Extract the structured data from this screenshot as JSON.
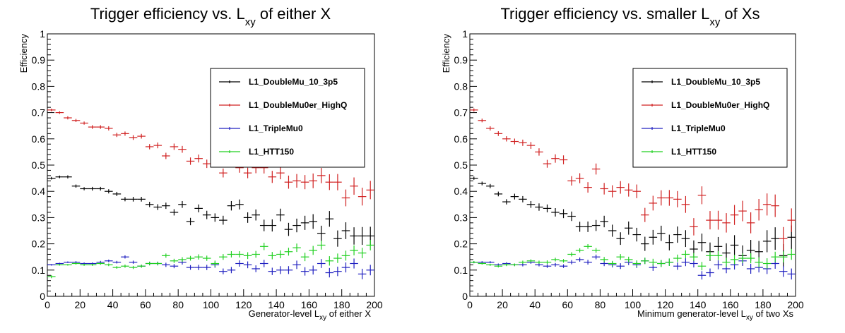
{
  "chart_data": [
    {
      "type": "scatter",
      "title_main": "Trigger efficiency vs. L",
      "title_sub": "xy",
      "title_tail": " of either X",
      "xlabel_main": "Generator-level L",
      "xlabel_sub": "xy",
      "xlabel_tail": " of either X",
      "ylabel": "Efficiency",
      "xlim": [
        0,
        200
      ],
      "ylim": [
        0,
        1
      ],
      "x_ticks": [
        "0",
        "20",
        "40",
        "60",
        "80",
        "100",
        "120",
        "140",
        "160",
        "180",
        "200"
      ],
      "y_ticks": [
        "0",
        "0.1",
        "0.2",
        "0.3",
        "0.4",
        "0.5",
        "0.6",
        "0.7",
        "0.8",
        "0.9",
        "1"
      ],
      "x": [
        2.5,
        7.5,
        12.5,
        17.5,
        22.5,
        27.5,
        32.5,
        37.5,
        42.5,
        47.5,
        52.5,
        57.5,
        62.5,
        67.5,
        72.5,
        77.5,
        82.5,
        87.5,
        92.5,
        97.5,
        102.5,
        107.5,
        112.5,
        117.5,
        122.5,
        127.5,
        132.5,
        137.5,
        142.5,
        147.5,
        152.5,
        157.5,
        162.5,
        167.5,
        172.5,
        177.5,
        182.5,
        187.5,
        192.5,
        197.5
      ],
      "series": [
        {
          "name": "L1_DoubleMu_10_3p5",
          "color": "#000000",
          "values": [
            0.45,
            0.455,
            0.455,
            0.42,
            0.41,
            0.41,
            0.41,
            0.4,
            0.39,
            0.37,
            0.37,
            0.37,
            0.35,
            0.34,
            0.345,
            0.32,
            0.35,
            0.285,
            0.335,
            0.31,
            0.3,
            0.29,
            0.345,
            0.35,
            0.3,
            0.31,
            0.27,
            0.27,
            0.31,
            0.255,
            0.27,
            0.28,
            0.285,
            0.24,
            0.295,
            0.22,
            0.25,
            0.23,
            0.23,
            0.23
          ],
          "err": [
            0.005,
            0.005,
            0.006,
            0.006,
            0.006,
            0.007,
            0.007,
            0.008,
            0.008,
            0.008,
            0.009,
            0.009,
            0.01,
            0.011,
            0.012,
            0.012,
            0.013,
            0.014,
            0.015,
            0.016,
            0.016,
            0.017,
            0.018,
            0.019,
            0.02,
            0.021,
            0.022,
            0.023,
            0.024,
            0.025,
            0.026,
            0.027,
            0.028,
            0.029,
            0.03,
            0.031,
            0.032,
            0.033,
            0.034,
            0.035
          ]
        },
        {
          "name": "L1_DoubleMu0er_HighQ",
          "color": "#d02020",
          "values": [
            0.71,
            0.7,
            0.68,
            0.67,
            0.66,
            0.645,
            0.645,
            0.64,
            0.615,
            0.62,
            0.605,
            0.61,
            0.57,
            0.575,
            0.535,
            0.57,
            0.56,
            0.515,
            0.525,
            0.505,
            0.52,
            0.47,
            0.53,
            0.49,
            0.47,
            0.49,
            0.49,
            0.455,
            0.47,
            0.435,
            0.44,
            0.435,
            0.44,
            0.46,
            0.435,
            0.435,
            0.375,
            0.42,
            0.38,
            0.405
          ],
          "err": [
            0.005,
            0.005,
            0.006,
            0.006,
            0.006,
            0.007,
            0.007,
            0.008,
            0.008,
            0.008,
            0.009,
            0.009,
            0.01,
            0.011,
            0.012,
            0.012,
            0.013,
            0.014,
            0.015,
            0.016,
            0.016,
            0.017,
            0.018,
            0.019,
            0.02,
            0.021,
            0.022,
            0.023,
            0.024,
            0.025,
            0.026,
            0.027,
            0.028,
            0.029,
            0.03,
            0.031,
            0.032,
            0.033,
            0.034,
            0.035
          ]
        },
        {
          "name": "L1_TripleMu0",
          "color": "#2020c0",
          "values": [
            0.12,
            0.125,
            0.13,
            0.13,
            0.125,
            0.125,
            0.13,
            0.135,
            0.13,
            0.15,
            0.13,
            0.115,
            0.125,
            0.125,
            0.12,
            0.115,
            0.13,
            0.11,
            0.11,
            0.11,
            0.12,
            0.095,
            0.1,
            0.125,
            0.12,
            0.105,
            0.125,
            0.095,
            0.1,
            0.1,
            0.12,
            0.095,
            0.1,
            0.125,
            0.09,
            0.095,
            0.11,
            0.125,
            0.085,
            0.1
          ],
          "err": [
            0.003,
            0.003,
            0.003,
            0.004,
            0.004,
            0.004,
            0.005,
            0.005,
            0.005,
            0.006,
            0.006,
            0.006,
            0.007,
            0.007,
            0.008,
            0.008,
            0.009,
            0.009,
            0.01,
            0.01,
            0.011,
            0.011,
            0.012,
            0.012,
            0.013,
            0.013,
            0.014,
            0.014,
            0.015,
            0.015,
            0.016,
            0.016,
            0.017,
            0.017,
            0.018,
            0.018,
            0.019,
            0.019,
            0.02,
            0.02
          ]
        },
        {
          "name": "L1_HTT150",
          "color": "#20d020",
          "values": [
            0.075,
            0.12,
            0.12,
            0.125,
            0.12,
            0.12,
            0.125,
            0.12,
            0.11,
            0.115,
            0.11,
            0.115,
            0.125,
            0.125,
            0.155,
            0.135,
            0.14,
            0.145,
            0.15,
            0.145,
            0.125,
            0.15,
            0.16,
            0.16,
            0.155,
            0.16,
            0.19,
            0.155,
            0.16,
            0.17,
            0.185,
            0.15,
            0.175,
            0.195,
            0.135,
            0.145,
            0.155,
            0.175,
            0.165,
            0.195
          ],
          "err": [
            0.006,
            0.003,
            0.003,
            0.004,
            0.004,
            0.004,
            0.005,
            0.005,
            0.005,
            0.006,
            0.006,
            0.006,
            0.007,
            0.007,
            0.008,
            0.008,
            0.009,
            0.009,
            0.01,
            0.01,
            0.011,
            0.011,
            0.012,
            0.012,
            0.013,
            0.013,
            0.014,
            0.014,
            0.015,
            0.015,
            0.016,
            0.016,
            0.017,
            0.017,
            0.018,
            0.018,
            0.019,
            0.019,
            0.02,
            0.02
          ]
        }
      ]
    },
    {
      "type": "scatter",
      "title_main": "Trigger efficiency vs. smaller L",
      "title_sub": "xy",
      "title_tail": " of Xs",
      "xlabel_main": "Minimum generator-level L",
      "xlabel_sub": "xy",
      "xlabel_tail": " of two Xs",
      "ylabel": "Efficiency",
      "xlim": [
        0,
        200
      ],
      "ylim": [
        0,
        1
      ],
      "x_ticks": [
        "0",
        "20",
        "40",
        "60",
        "80",
        "100",
        "120",
        "140",
        "160",
        "180",
        "200"
      ],
      "y_ticks": [
        "0",
        "0.1",
        "0.2",
        "0.3",
        "0.4",
        "0.5",
        "0.6",
        "0.7",
        "0.8",
        "0.9",
        "1"
      ],
      "x": [
        2.5,
        7.5,
        12.5,
        17.5,
        22.5,
        27.5,
        32.5,
        37.5,
        42.5,
        47.5,
        52.5,
        57.5,
        62.5,
        67.5,
        72.5,
        77.5,
        82.5,
        87.5,
        92.5,
        97.5,
        102.5,
        107.5,
        112.5,
        117.5,
        122.5,
        127.5,
        132.5,
        137.5,
        142.5,
        147.5,
        152.5,
        157.5,
        162.5,
        167.5,
        172.5,
        177.5,
        182.5,
        187.5,
        192.5,
        197.5
      ],
      "series": [
        {
          "name": "L1_DoubleMu_10_3p5",
          "color": "#000000",
          "values": [
            0.45,
            0.43,
            0.42,
            0.39,
            0.36,
            0.38,
            0.37,
            0.35,
            0.34,
            0.335,
            0.32,
            0.315,
            0.305,
            0.265,
            0.265,
            0.27,
            0.285,
            0.25,
            0.22,
            0.26,
            0.235,
            0.2,
            0.225,
            0.24,
            0.205,
            0.235,
            0.22,
            0.18,
            0.205,
            0.17,
            0.19,
            0.165,
            0.195,
            0.155,
            0.175,
            0.17,
            0.21,
            0.22,
            0.155,
            0.225
          ],
          "err": [
            0.006,
            0.007,
            0.008,
            0.009,
            0.01,
            0.011,
            0.012,
            0.013,
            0.014,
            0.015,
            0.016,
            0.017,
            0.018,
            0.019,
            0.02,
            0.021,
            0.022,
            0.023,
            0.024,
            0.025,
            0.026,
            0.027,
            0.028,
            0.029,
            0.03,
            0.031,
            0.032,
            0.033,
            0.034,
            0.035,
            0.036,
            0.037,
            0.038,
            0.039,
            0.04,
            0.041,
            0.042,
            0.043,
            0.044,
            0.045
          ]
        },
        {
          "name": "L1_DoubleMu0er_HighQ",
          "color": "#d02020",
          "values": [
            0.71,
            0.67,
            0.64,
            0.62,
            0.6,
            0.59,
            0.585,
            0.575,
            0.55,
            0.505,
            0.525,
            0.52,
            0.44,
            0.45,
            0.415,
            0.485,
            0.41,
            0.4,
            0.415,
            0.405,
            0.4,
            0.31,
            0.355,
            0.375,
            0.375,
            0.37,
            0.35,
            0.265,
            0.385,
            0.29,
            0.29,
            0.28,
            0.31,
            0.325,
            0.28,
            0.33,
            0.35,
            0.345,
            0.22,
            0.29
          ],
          "err": [
            0.006,
            0.007,
            0.008,
            0.009,
            0.01,
            0.011,
            0.012,
            0.013,
            0.014,
            0.015,
            0.016,
            0.017,
            0.018,
            0.019,
            0.02,
            0.021,
            0.022,
            0.023,
            0.024,
            0.025,
            0.026,
            0.027,
            0.028,
            0.029,
            0.03,
            0.031,
            0.032,
            0.033,
            0.034,
            0.035,
            0.036,
            0.037,
            0.038,
            0.039,
            0.04,
            0.041,
            0.042,
            0.043,
            0.044,
            0.045
          ]
        },
        {
          "name": "L1_TripleMu0",
          "color": "#2020c0",
          "values": [
            0.13,
            0.13,
            0.13,
            0.12,
            0.125,
            0.12,
            0.12,
            0.13,
            0.12,
            0.115,
            0.12,
            0.115,
            0.13,
            0.14,
            0.13,
            0.15,
            0.125,
            0.12,
            0.115,
            0.13,
            0.12,
            0.135,
            0.11,
            0.125,
            0.13,
            0.115,
            0.13,
            0.125,
            0.08,
            0.09,
            0.12,
            0.105,
            0.12,
            0.135,
            0.105,
            0.11,
            0.105,
            0.125,
            0.095,
            0.085
          ],
          "err": [
            0.004,
            0.004,
            0.004,
            0.005,
            0.005,
            0.005,
            0.006,
            0.006,
            0.006,
            0.007,
            0.007,
            0.007,
            0.008,
            0.008,
            0.009,
            0.009,
            0.01,
            0.01,
            0.011,
            0.011,
            0.012,
            0.012,
            0.013,
            0.013,
            0.014,
            0.014,
            0.015,
            0.015,
            0.016,
            0.016,
            0.017,
            0.017,
            0.018,
            0.018,
            0.019,
            0.019,
            0.02,
            0.02,
            0.021,
            0.021
          ]
        },
        {
          "name": "L1_HTT150",
          "color": "#20d020",
          "values": [
            0.13,
            0.125,
            0.12,
            0.115,
            0.12,
            0.12,
            0.13,
            0.135,
            0.13,
            0.13,
            0.14,
            0.135,
            0.16,
            0.175,
            0.19,
            0.175,
            0.14,
            0.125,
            0.15,
            0.14,
            0.125,
            0.135,
            0.13,
            0.125,
            0.13,
            0.145,
            0.16,
            0.15,
            0.115,
            0.155,
            0.155,
            0.13,
            0.14,
            0.145,
            0.145,
            0.13,
            0.125,
            0.15,
            0.15,
            0.16
          ],
          "err": [
            0.004,
            0.004,
            0.004,
            0.005,
            0.005,
            0.005,
            0.006,
            0.006,
            0.006,
            0.007,
            0.007,
            0.007,
            0.008,
            0.008,
            0.009,
            0.009,
            0.01,
            0.01,
            0.011,
            0.011,
            0.012,
            0.012,
            0.013,
            0.013,
            0.014,
            0.014,
            0.015,
            0.015,
            0.016,
            0.016,
            0.017,
            0.017,
            0.018,
            0.018,
            0.019,
            0.019,
            0.02,
            0.02,
            0.021,
            0.021
          ]
        }
      ]
    }
  ]
}
